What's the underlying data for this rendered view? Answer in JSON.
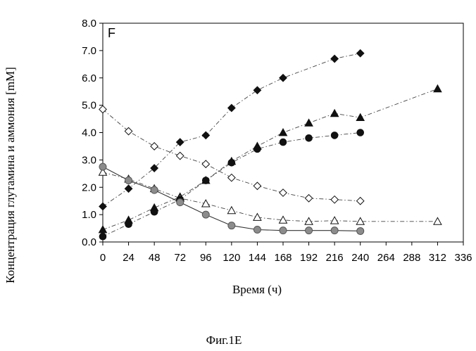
{
  "chart_data": {
    "type": "scatter",
    "panel_label": "F",
    "xlabel": "Время (ч)",
    "ylabel": "Концентрация глутамина и аммония [mM]",
    "caption": "Фиг.1E",
    "xlim": [
      0,
      336
    ],
    "ylim": [
      0,
      8
    ],
    "x_ticks": [
      0,
      24,
      48,
      72,
      96,
      120,
      144,
      168,
      192,
      216,
      240,
      264,
      288,
      312,
      336
    ],
    "y_ticks": [
      0,
      1,
      2,
      3,
      4,
      5,
      6,
      7,
      8
    ],
    "x_tick_labels": [
      "0",
      "24",
      "48",
      "72",
      "96",
      "120",
      "144",
      "168",
      "192",
      "216",
      "240",
      "264",
      "288",
      "312",
      "336"
    ],
    "y_tick_labels": [
      "0.0",
      "1.0",
      "2.0",
      "3.0",
      "4.0",
      "5.0",
      "6.0",
      "7.0",
      "8.0"
    ],
    "grid": false,
    "legend": "none",
    "series": [
      {
        "marker": "filled-diamond",
        "color": "#111111",
        "line": "dash-dot",
        "x": [
          0,
          24,
          48,
          72,
          96,
          120,
          144,
          168,
          216,
          240
        ],
        "y": [
          1.3,
          1.95,
          2.7,
          3.65,
          3.9,
          4.9,
          5.55,
          6.0,
          6.7,
          6.9
        ]
      },
      {
        "marker": "open-diamond",
        "color": "#111111",
        "line": "dash-dot",
        "x": [
          0,
          24,
          48,
          72,
          96,
          120,
          144,
          168,
          192,
          216,
          240
        ],
        "y": [
          4.85,
          4.05,
          3.5,
          3.15,
          2.85,
          2.35,
          2.05,
          1.8,
          1.6,
          1.55,
          1.5
        ]
      },
      {
        "marker": "filled-triangle",
        "color": "#111111",
        "line": "dash-dot",
        "x": [
          0,
          24,
          48,
          72,
          96,
          120,
          144,
          168,
          192,
          216,
          240,
          312
        ],
        "y": [
          0.45,
          0.8,
          1.25,
          1.65,
          2.25,
          2.95,
          3.5,
          4.0,
          4.35,
          4.7,
          4.55,
          5.6
        ]
      },
      {
        "marker": "open-triangle",
        "color": "#111111",
        "line": "dash-dot",
        "x": [
          0,
          24,
          48,
          72,
          96,
          120,
          144,
          168,
          192,
          216,
          240,
          312
        ],
        "y": [
          2.55,
          2.3,
          1.95,
          1.6,
          1.4,
          1.15,
          0.9,
          0.8,
          0.75,
          0.78,
          0.75,
          0.75
        ]
      },
      {
        "marker": "filled-circle",
        "color": "#111111",
        "line": "dash-dot",
        "x": [
          0,
          24,
          48,
          72,
          96,
          120,
          144,
          168,
          192,
          216,
          240
        ],
        "y": [
          0.2,
          0.65,
          1.1,
          1.55,
          2.25,
          2.9,
          3.4,
          3.65,
          3.8,
          3.9,
          4.0
        ]
      },
      {
        "marker": "grey-circle",
        "color": "#8c8c8c",
        "line": "solid",
        "x": [
          0,
          24,
          48,
          72,
          96,
          120,
          144,
          168,
          192,
          216,
          240
        ],
        "y": [
          2.75,
          2.25,
          1.9,
          1.45,
          1.0,
          0.6,
          0.45,
          0.42,
          0.42,
          0.42,
          0.4
        ]
      }
    ]
  }
}
